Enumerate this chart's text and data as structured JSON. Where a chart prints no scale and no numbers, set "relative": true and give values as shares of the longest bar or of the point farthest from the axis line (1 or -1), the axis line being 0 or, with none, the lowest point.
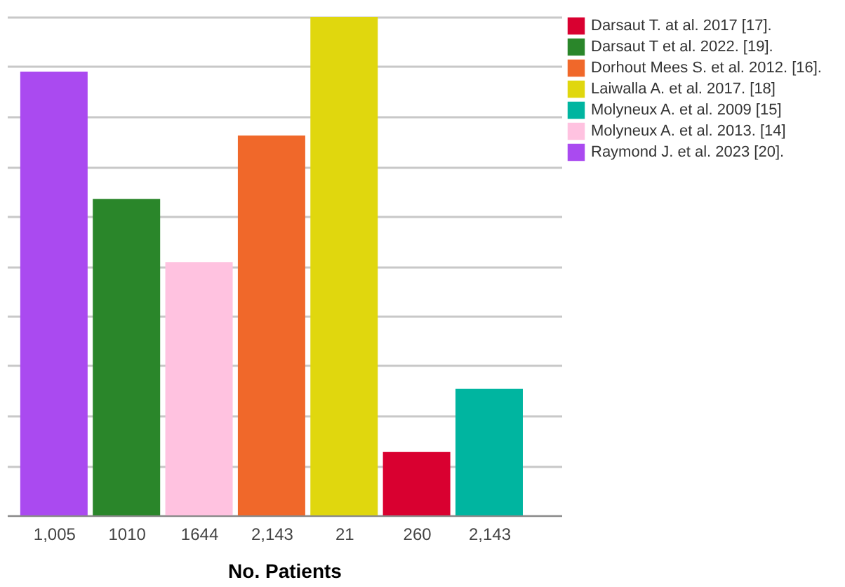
{
  "chart_data": {
    "type": "bar",
    "xlabel": "No. Patients",
    "relative": true,
    "grid": "y",
    "legend": "top right",
    "categories": [
      "1,005",
      "1010",
      "1644",
      "2,143",
      "21",
      "260",
      "2,143"
    ],
    "series": [
      {
        "name": "Darsaut T. at al. 2017 [17].",
        "color": "#d90030",
        "values": [
          null,
          null,
          null,
          null,
          null,
          0.127,
          null
        ]
      },
      {
        "name": "Darsaut T et al. 2022. [19].",
        "color": "#2a862a",
        "values": [
          null,
          0.635,
          null,
          null,
          null,
          null,
          null
        ]
      },
      {
        "name": "Dorhout Mees S. et al. 2012. [16].",
        "color": "#f0682a",
        "values": [
          null,
          null,
          null,
          0.762,
          null,
          null,
          null
        ]
      },
      {
        "name": "Laiwalla A. et al. 2017. [18]",
        "color": "#e0d70e",
        "values": [
          null,
          null,
          null,
          null,
          1,
          null,
          null
        ]
      },
      {
        "name": "Molyneux A. et al. 2009 [15]",
        "color": "#00b5a0",
        "values": [
          null,
          null,
          null,
          null,
          null,
          null,
          0.254
        ]
      },
      {
        "name": "Molyneux A. et al. 2013. [14]",
        "color": "#ffc2e0",
        "values": [
          null,
          null,
          0.508,
          null,
          null,
          null,
          null
        ]
      },
      {
        "name": "Raymond J. et al. 2023 [20].",
        "color": "#aa4af0",
        "values": [
          0.89,
          null,
          null,
          null,
          null,
          null,
          null
        ]
      }
    ]
  }
}
